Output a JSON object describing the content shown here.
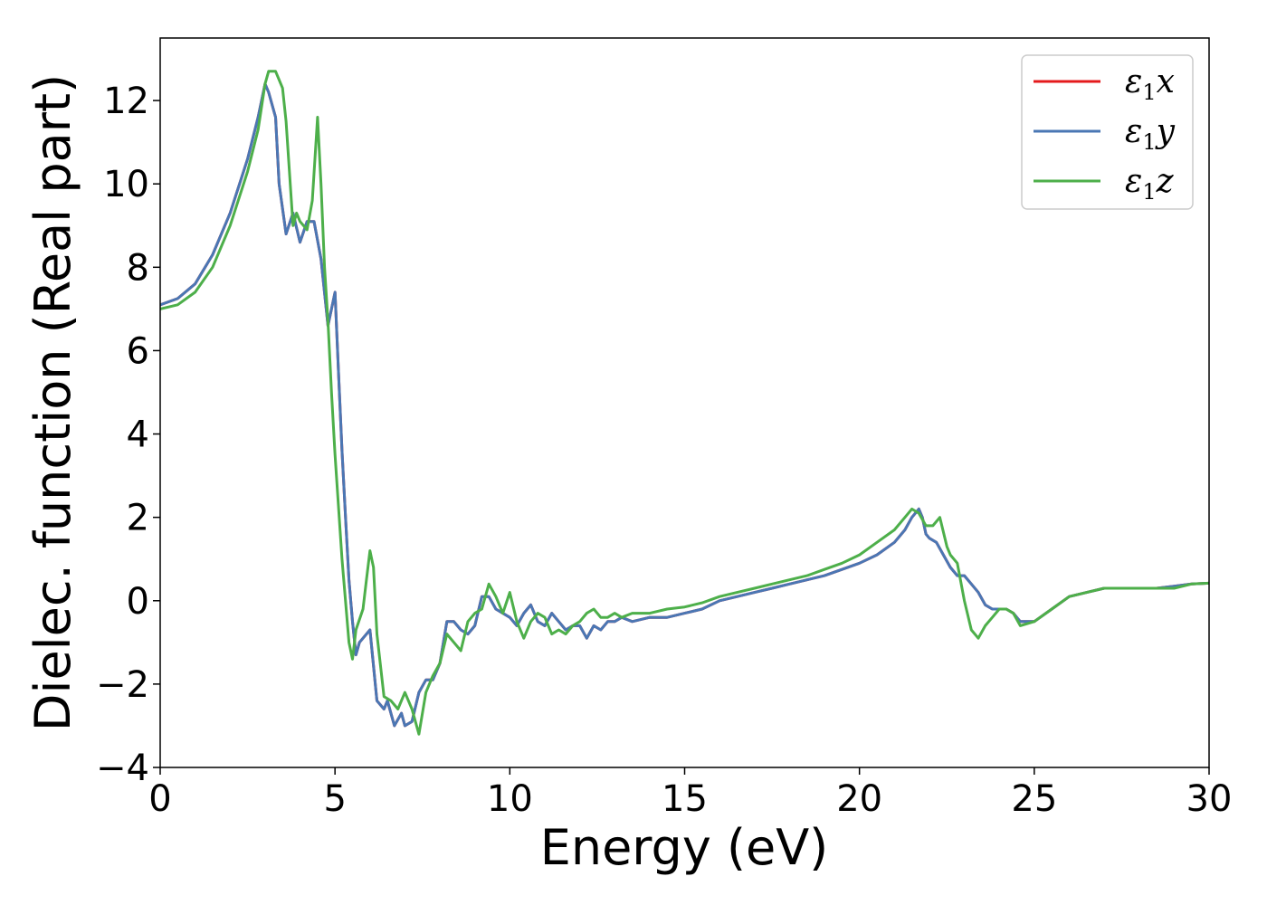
{
  "chart_data": {
    "type": "line",
    "title": "",
    "xlabel": "Energy (eV)",
    "ylabel": "Dielec. function (Real part)",
    "xlim": [
      0,
      30
    ],
    "ylim": [
      -4,
      13.5
    ],
    "xticks": [
      0,
      5,
      10,
      15,
      20,
      25,
      30
    ],
    "xtick_labels": [
      "0",
      "5",
      "10",
      "15",
      "20",
      "25",
      "30"
    ],
    "yticks": [
      -4,
      -2,
      0,
      2,
      4,
      6,
      8,
      10,
      12
    ],
    "ytick_labels": [
      "−4",
      "−2",
      "0",
      "2",
      "4",
      "6",
      "8",
      "10",
      "12"
    ],
    "grid": false,
    "legend_position": "top-right",
    "series": [
      {
        "name": "ε₁x",
        "name_base": "ε",
        "name_sub": "1",
        "name_tail": "x",
        "color": "#e41a1c",
        "x": [
          0,
          0.5,
          1,
          1.5,
          2,
          2.5,
          2.8,
          3.0,
          3.1,
          3.3,
          3.4,
          3.6,
          3.8,
          4.0,
          4.2,
          4.4,
          4.6,
          4.8,
          4.9,
          5.0,
          5.1,
          5.2,
          5.3,
          5.4,
          5.5,
          5.6,
          5.7,
          5.8,
          6.0,
          6.2,
          6.4,
          6.5,
          6.7,
          6.9,
          7.0,
          7.2,
          7.4,
          7.6,
          7.8,
          8.0,
          8.2,
          8.4,
          8.6,
          8.8,
          9.0,
          9.2,
          9.4,
          9.6,
          9.8,
          10.0,
          10.2,
          10.4,
          10.6,
          10.8,
          11.0,
          11.2,
          11.4,
          11.6,
          11.8,
          12.0,
          12.2,
          12.4,
          12.6,
          12.8,
          13.0,
          13.2,
          13.5,
          14,
          14.5,
          15,
          15.5,
          16,
          16.5,
          17,
          17.5,
          18,
          18.5,
          19,
          19.5,
          20,
          20.5,
          21,
          21.3,
          21.5,
          21.7,
          21.8,
          21.9,
          22.0,
          22.2,
          22.4,
          22.6,
          22.8,
          23.0,
          23.2,
          23.4,
          23.6,
          23.8,
          24.0,
          24.2,
          24.4,
          24.6,
          25,
          25.5,
          26,
          26.5,
          27,
          27.5,
          28,
          28.5,
          29,
          29.5,
          30
        ],
        "y": [
          7.1,
          7.25,
          7.6,
          8.3,
          9.3,
          10.6,
          11.6,
          12.4,
          12.2,
          11.6,
          10.0,
          8.8,
          9.3,
          8.6,
          9.1,
          9.1,
          8.2,
          6.6,
          7.0,
          7.4,
          5.5,
          3.6,
          2.0,
          0.5,
          -0.5,
          -1.3,
          -1.0,
          -0.9,
          -0.7,
          -2.4,
          -2.6,
          -2.4,
          -3.0,
          -2.7,
          -3.0,
          -2.9,
          -2.2,
          -1.9,
          -1.9,
          -1.5,
          -0.5,
          -0.5,
          -0.7,
          -0.8,
          -0.6,
          0.1,
          0.1,
          -0.2,
          -0.3,
          -0.4,
          -0.6,
          -0.3,
          -0.1,
          -0.5,
          -0.6,
          -0.3,
          -0.5,
          -0.7,
          -0.6,
          -0.6,
          -0.9,
          -0.6,
          -0.7,
          -0.5,
          -0.5,
          -0.4,
          -0.5,
          -0.4,
          -0.4,
          -0.3,
          -0.2,
          0.0,
          0.1,
          0.2,
          0.3,
          0.4,
          0.5,
          0.6,
          0.75,
          0.9,
          1.1,
          1.4,
          1.7,
          2.0,
          2.2,
          2.0,
          1.6,
          1.5,
          1.4,
          1.1,
          0.8,
          0.6,
          0.6,
          0.4,
          0.2,
          -0.1,
          -0.2,
          -0.2,
          -0.2,
          -0.3,
          -0.5,
          -0.5,
          -0.2,
          0.1,
          0.2,
          0.3,
          0.3,
          0.3,
          0.3,
          0.35,
          0.4,
          0.42
        ]
      },
      {
        "name": "ε₁y",
        "name_base": "ε",
        "name_sub": "1",
        "name_tail": "y",
        "color": "#4a77b4",
        "x": [
          0,
          0.5,
          1,
          1.5,
          2,
          2.5,
          2.8,
          3.0,
          3.1,
          3.3,
          3.4,
          3.6,
          3.8,
          4.0,
          4.2,
          4.4,
          4.6,
          4.8,
          4.9,
          5.0,
          5.1,
          5.2,
          5.3,
          5.4,
          5.5,
          5.6,
          5.7,
          5.8,
          6.0,
          6.2,
          6.4,
          6.5,
          6.7,
          6.9,
          7.0,
          7.2,
          7.4,
          7.6,
          7.8,
          8.0,
          8.2,
          8.4,
          8.6,
          8.8,
          9.0,
          9.2,
          9.4,
          9.6,
          9.8,
          10.0,
          10.2,
          10.4,
          10.6,
          10.8,
          11.0,
          11.2,
          11.4,
          11.6,
          11.8,
          12.0,
          12.2,
          12.4,
          12.6,
          12.8,
          13.0,
          13.2,
          13.5,
          14,
          14.5,
          15,
          15.5,
          16,
          16.5,
          17,
          17.5,
          18,
          18.5,
          19,
          19.5,
          20,
          20.5,
          21,
          21.3,
          21.5,
          21.7,
          21.8,
          21.9,
          22.0,
          22.2,
          22.4,
          22.6,
          22.8,
          23.0,
          23.2,
          23.4,
          23.6,
          23.8,
          24.0,
          24.2,
          24.4,
          24.6,
          25,
          25.5,
          26,
          26.5,
          27,
          27.5,
          28,
          28.5,
          29,
          29.5,
          30
        ],
        "y": [
          7.1,
          7.25,
          7.6,
          8.3,
          9.3,
          10.6,
          11.6,
          12.4,
          12.2,
          11.6,
          10.0,
          8.8,
          9.3,
          8.6,
          9.1,
          9.1,
          8.2,
          6.6,
          7.0,
          7.4,
          5.5,
          3.6,
          2.0,
          0.5,
          -0.5,
          -1.3,
          -1.0,
          -0.9,
          -0.7,
          -2.4,
          -2.6,
          -2.4,
          -3.0,
          -2.7,
          -3.0,
          -2.9,
          -2.2,
          -1.9,
          -1.9,
          -1.5,
          -0.5,
          -0.5,
          -0.7,
          -0.8,
          -0.6,
          0.1,
          0.1,
          -0.2,
          -0.3,
          -0.4,
          -0.6,
          -0.3,
          -0.1,
          -0.5,
          -0.6,
          -0.3,
          -0.5,
          -0.7,
          -0.6,
          -0.6,
          -0.9,
          -0.6,
          -0.7,
          -0.5,
          -0.5,
          -0.4,
          -0.5,
          -0.4,
          -0.4,
          -0.3,
          -0.2,
          0.0,
          0.1,
          0.2,
          0.3,
          0.4,
          0.5,
          0.6,
          0.75,
          0.9,
          1.1,
          1.4,
          1.7,
          2.0,
          2.2,
          2.0,
          1.6,
          1.5,
          1.4,
          1.1,
          0.8,
          0.6,
          0.6,
          0.4,
          0.2,
          -0.1,
          -0.2,
          -0.2,
          -0.2,
          -0.3,
          -0.5,
          -0.5,
          -0.2,
          0.1,
          0.2,
          0.3,
          0.3,
          0.3,
          0.3,
          0.35,
          0.4,
          0.42
        ]
      },
      {
        "name": "ε₁z",
        "name_base": "ε",
        "name_sub": "1",
        "name_tail": "z",
        "color": "#4daf4a",
        "x": [
          0,
          0.5,
          1,
          1.5,
          2,
          2.5,
          2.8,
          3.0,
          3.1,
          3.3,
          3.5,
          3.6,
          3.8,
          3.9,
          4.0,
          4.2,
          4.35,
          4.5,
          4.6,
          4.7,
          4.8,
          4.9,
          5.0,
          5.2,
          5.4,
          5.5,
          5.6,
          5.8,
          5.9,
          6.0,
          6.1,
          6.2,
          6.4,
          6.6,
          6.8,
          7.0,
          7.2,
          7.4,
          7.6,
          7.8,
          8.0,
          8.2,
          8.4,
          8.6,
          8.8,
          9.0,
          9.2,
          9.4,
          9.6,
          9.8,
          10.0,
          10.2,
          10.4,
          10.6,
          10.8,
          11.0,
          11.2,
          11.4,
          11.6,
          11.8,
          12.0,
          12.2,
          12.4,
          12.6,
          12.8,
          13.0,
          13.2,
          13.5,
          14,
          14.5,
          15,
          15.5,
          16,
          16.5,
          17,
          17.5,
          18,
          18.5,
          19,
          19.5,
          20,
          20.5,
          21,
          21.3,
          21.5,
          21.7,
          21.9,
          22.1,
          22.3,
          22.5,
          22.6,
          22.8,
          23.0,
          23.2,
          23.4,
          23.6,
          23.8,
          24.0,
          24.2,
          24.4,
          24.6,
          25,
          25.5,
          26,
          26.5,
          27,
          27.5,
          28,
          28.5,
          29,
          29.5,
          30
        ],
        "y": [
          7.0,
          7.1,
          7.4,
          8.0,
          9.0,
          10.3,
          11.3,
          12.4,
          12.7,
          12.7,
          12.3,
          11.5,
          9.0,
          9.3,
          9.1,
          8.9,
          9.6,
          11.6,
          10.0,
          8.0,
          6.7,
          5.0,
          3.5,
          1.0,
          -1.0,
          -1.4,
          -0.7,
          -0.2,
          0.5,
          1.2,
          0.8,
          -0.8,
          -2.3,
          -2.4,
          -2.6,
          -2.2,
          -2.6,
          -3.2,
          -2.2,
          -1.8,
          -1.5,
          -0.8,
          -1.0,
          -1.2,
          -0.5,
          -0.3,
          -0.2,
          0.4,
          0.1,
          -0.3,
          0.2,
          -0.5,
          -0.9,
          -0.5,
          -0.3,
          -0.4,
          -0.8,
          -0.7,
          -0.8,
          -0.6,
          -0.5,
          -0.3,
          -0.2,
          -0.4,
          -0.4,
          -0.3,
          -0.4,
          -0.3,
          -0.3,
          -0.2,
          -0.15,
          -0.05,
          0.1,
          0.2,
          0.3,
          0.4,
          0.5,
          0.6,
          0.75,
          0.9,
          1.1,
          1.4,
          1.7,
          2.0,
          2.2,
          2.1,
          1.8,
          1.8,
          2.0,
          1.3,
          1.1,
          0.9,
          0.0,
          -0.7,
          -0.9,
          -0.6,
          -0.4,
          -0.2,
          -0.2,
          -0.3,
          -0.6,
          -0.5,
          -0.2,
          0.1,
          0.2,
          0.3,
          0.3,
          0.3,
          0.3,
          0.3,
          0.4,
          0.42
        ]
      }
    ]
  }
}
